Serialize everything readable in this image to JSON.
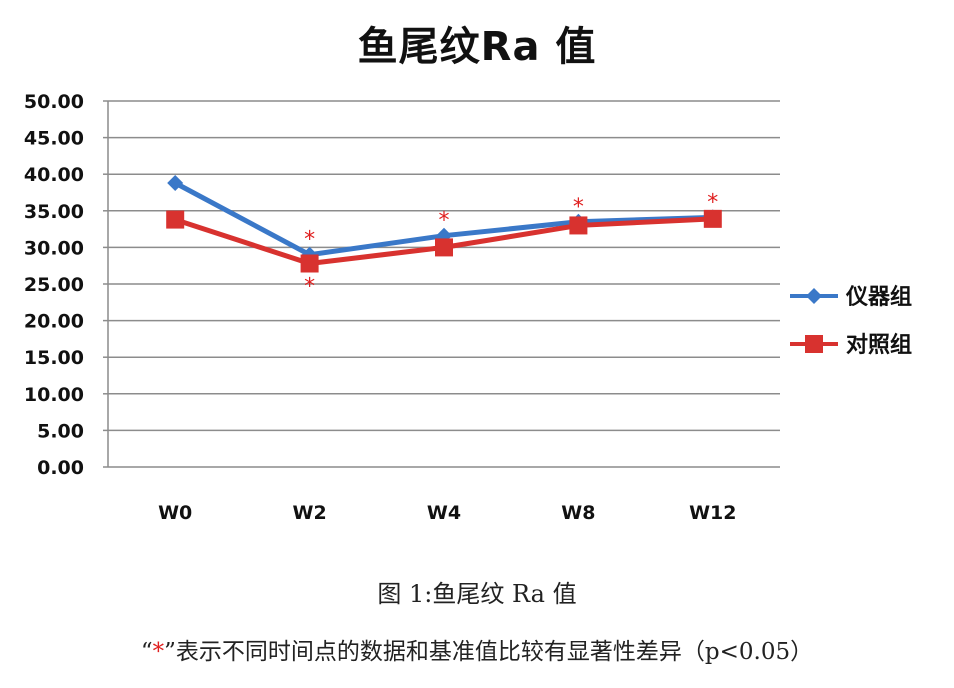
{
  "chart_data": {
    "type": "line",
    "title": "鱼尾纹Ra 值",
    "xlabel": "",
    "ylabel": "",
    "categories": [
      "W0",
      "W2",
      "W4",
      "W8",
      "W12"
    ],
    "ylim": [
      0,
      50
    ],
    "yticks": [
      "0.00",
      "5.00",
      "10.00",
      "15.00",
      "20.00",
      "25.00",
      "30.00",
      "35.00",
      "40.00",
      "45.00",
      "50.00"
    ],
    "grid": true,
    "legend_position": "right",
    "series": [
      {
        "name": "仪器组",
        "color": "#3a78c8",
        "marker": "diamond",
        "values": [
          38.8,
          29.0,
          31.6,
          33.5,
          34.1
        ]
      },
      {
        "name": "对照组",
        "color": "#d8322f",
        "marker": "square",
        "values": [
          33.8,
          27.8,
          30.0,
          33.0,
          33.9
        ]
      }
    ],
    "annotations": [
      {
        "category": "W2",
        "series": "仪器组",
        "text": "*",
        "position": "above"
      },
      {
        "category": "W2",
        "series": "对照组",
        "text": "*",
        "position": "below"
      },
      {
        "category": "W4",
        "series": "仪器组",
        "text": "*",
        "position": "above"
      },
      {
        "category": "W8",
        "series": "仪器组",
        "text": "*",
        "position": "above"
      },
      {
        "category": "W12",
        "series": "仪器组",
        "text": "*",
        "position": "above"
      }
    ],
    "annotation_color": "#e02020"
  },
  "caption": "图 1:鱼尾纹 Ra 值",
  "note": {
    "open_quote": "“",
    "star": "*",
    "text": "”表示不同时间点的数据和基准值比较有显著性差异（p<0.05）"
  }
}
